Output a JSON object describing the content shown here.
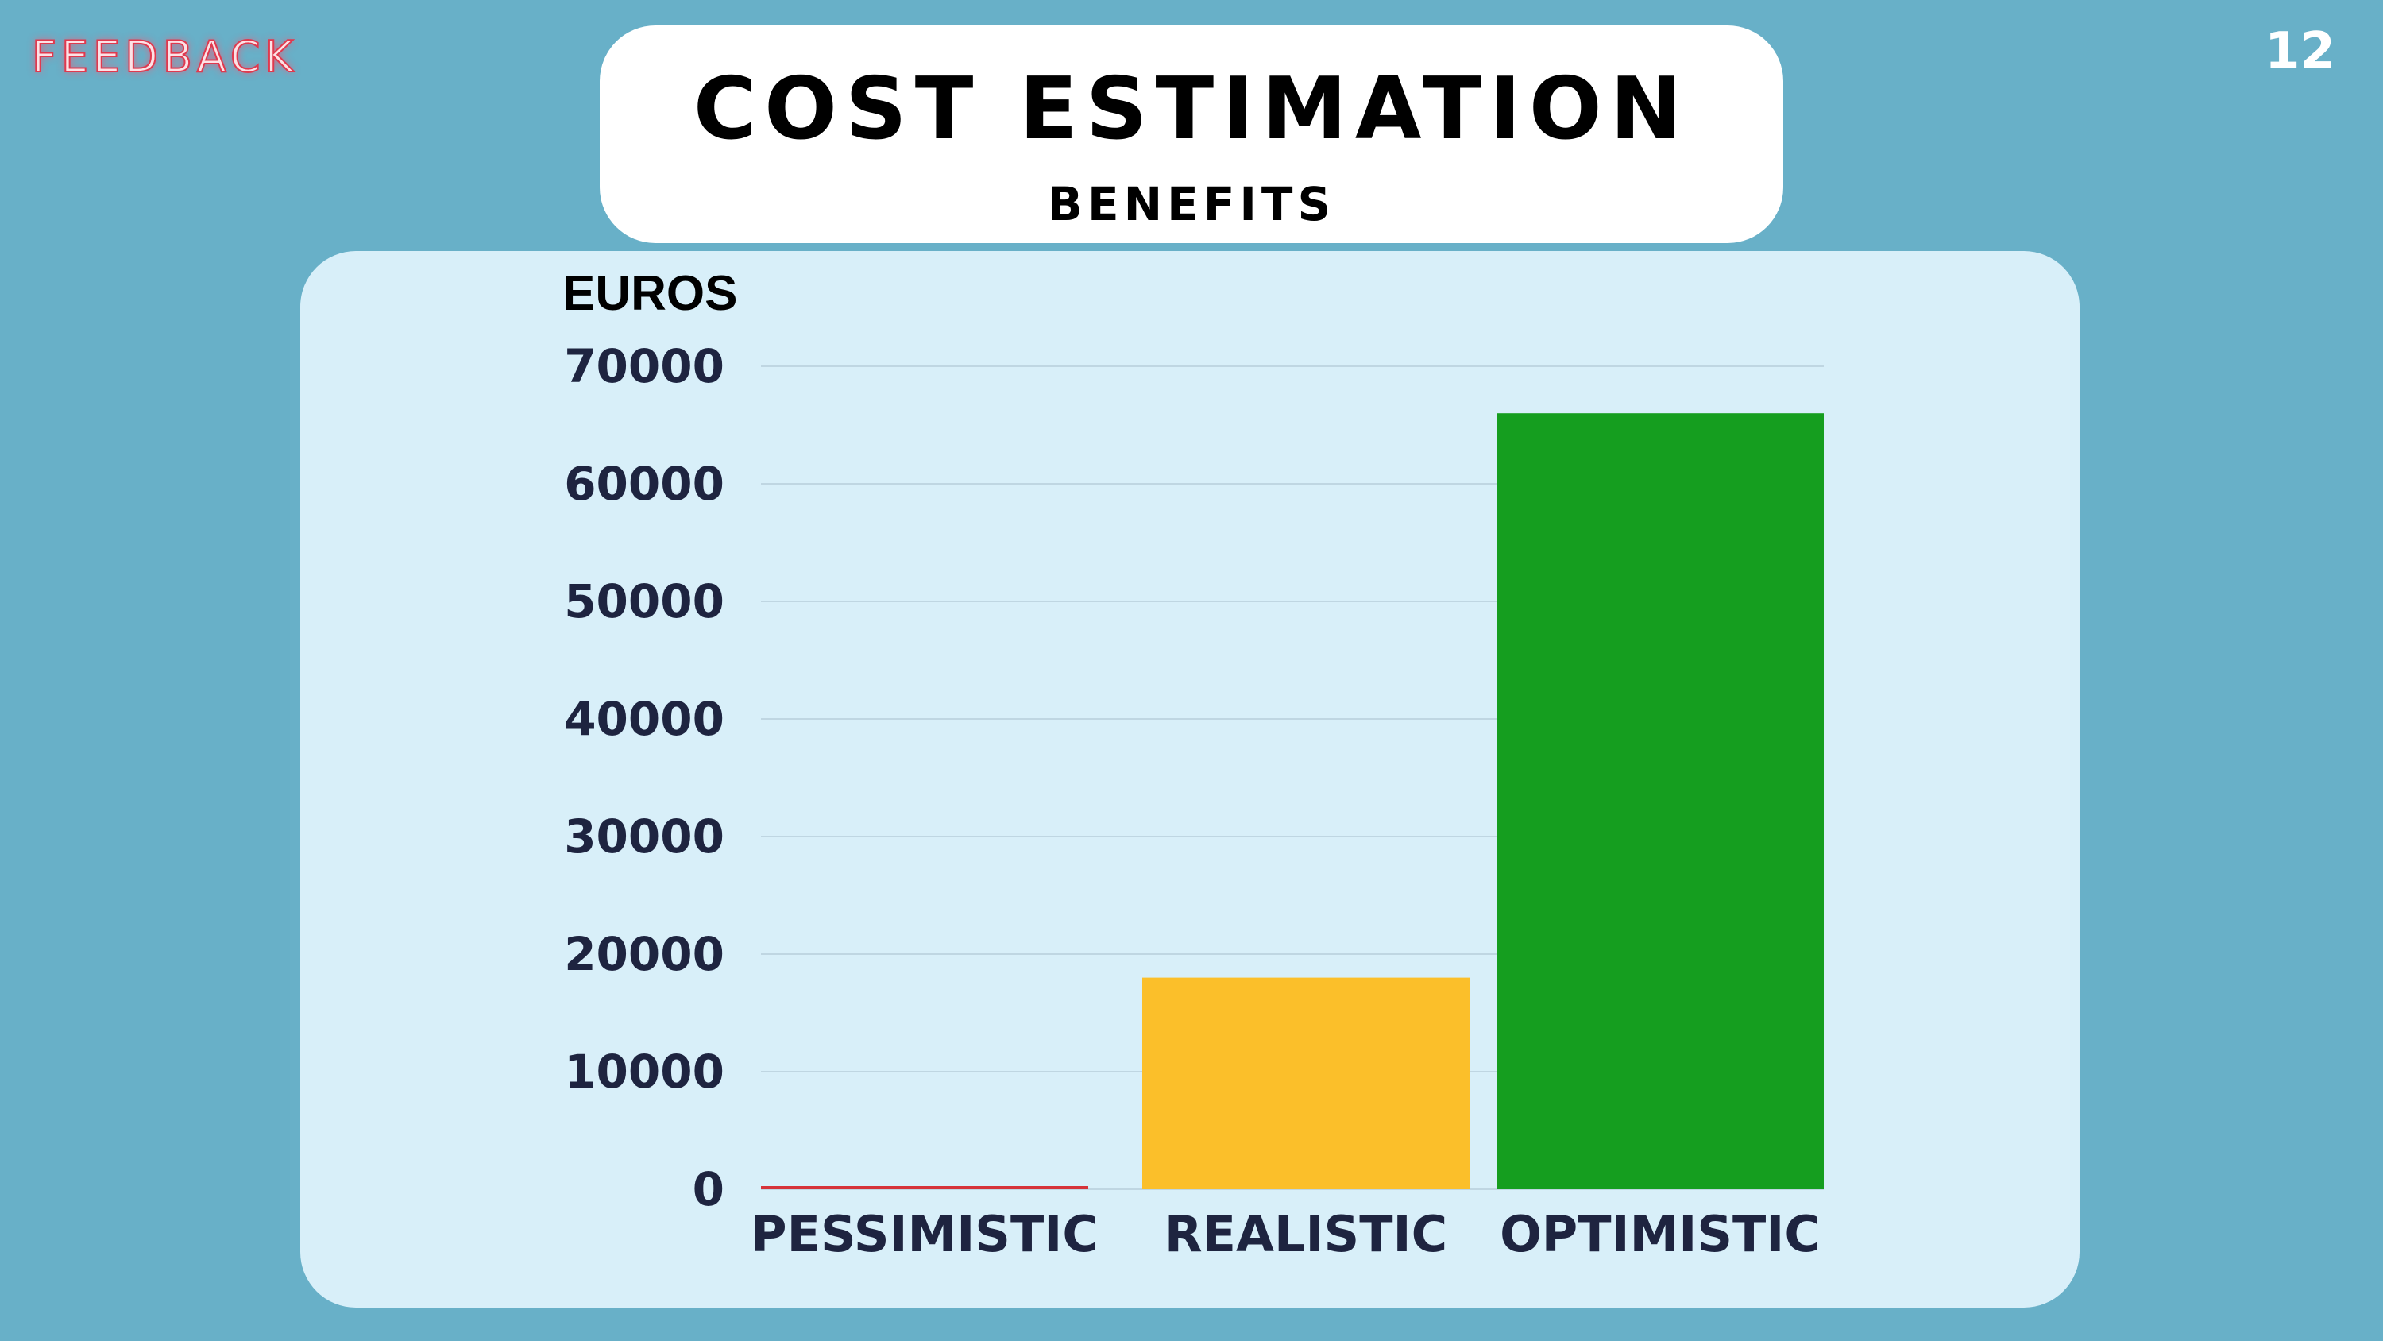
{
  "brand": "FEEDBACK",
  "page_number": "12",
  "header": {
    "title": "COST ESTIMATION",
    "subtitle": "BENEFITS"
  },
  "chart_data": {
    "type": "bar",
    "ylabel": "EUROS",
    "xlabel": "",
    "categories": [
      "PESSIMISTIC",
      "REALISTIC",
      "OPTIMISTIC"
    ],
    "values": [
      200,
      18000,
      66000
    ],
    "colors": [
      "#D6333A",
      "#FBBF2A",
      "#159E1F"
    ],
    "ylim": [
      0,
      70000
    ],
    "yticks": [
      0,
      10000,
      20000,
      30000,
      40000,
      50000,
      60000,
      70000
    ],
    "grid": true,
    "legend": "none"
  }
}
